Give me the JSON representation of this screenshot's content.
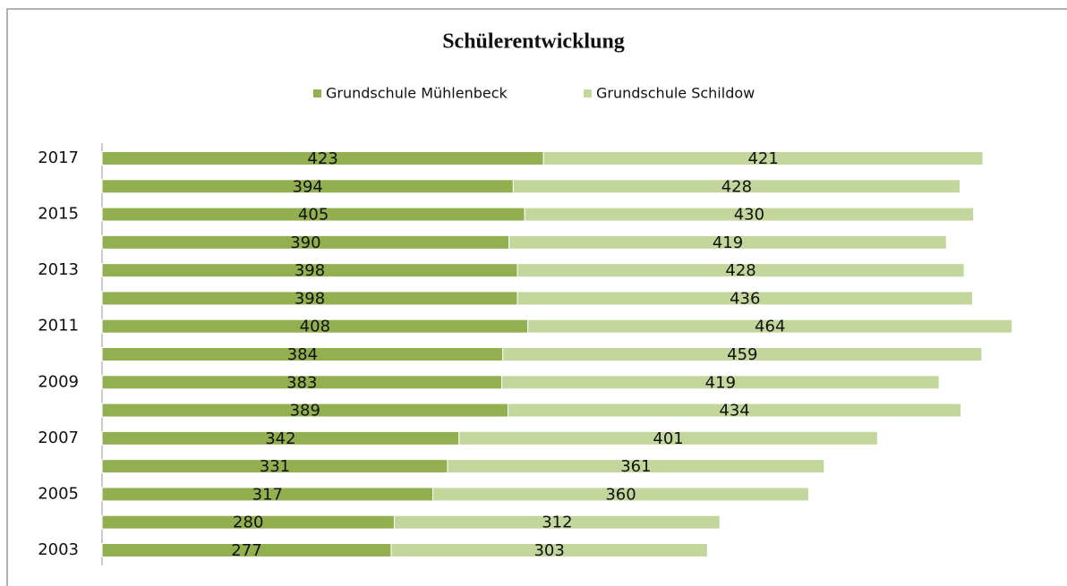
{
  "chart_data": {
    "type": "stacked-bar-horizontal",
    "title": "Schülerentwicklung",
    "categories": [
      "2003",
      null,
      "2005",
      null,
      "2007",
      null,
      "2009",
      null,
      "2011",
      null,
      "2013",
      null,
      "2015",
      null,
      "2017"
    ],
    "series": [
      {
        "name": "Grundschule Mühlenbeck",
        "color": "#92b050",
        "values": [
          277,
          280,
          317,
          331,
          342,
          389,
          383,
          384,
          408,
          398,
          398,
          390,
          405,
          394,
          423
        ]
      },
      {
        "name": "Grundschule Schildow",
        "color": "#c3d69b",
        "values": [
          303,
          312,
          360,
          361,
          401,
          434,
          419,
          459,
          464,
          436,
          428,
          419,
          430,
          428,
          421
        ]
      }
    ],
    "legend": "top"
  }
}
